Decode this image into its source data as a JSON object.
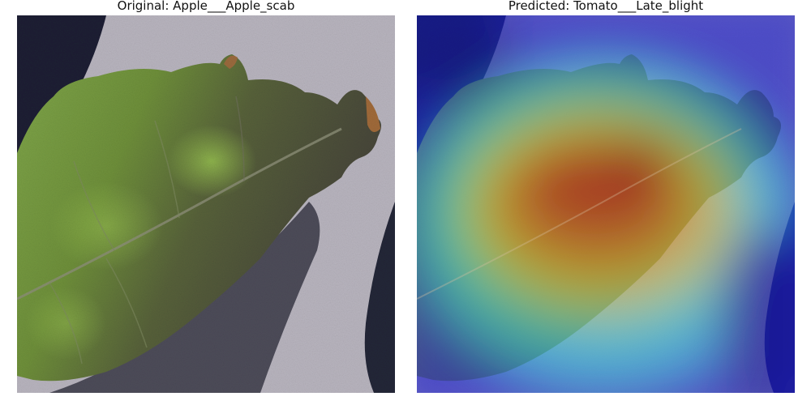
{
  "panels": [
    {
      "title": "Original: Apple___Apple_scab"
    },
    {
      "title": "Predicted: Tomato___Late_blight"
    }
  ],
  "colors": {
    "background_surface": "#b7b3bd",
    "shadow": "#1f2233",
    "leaf_green": "#6f8f3c",
    "leaf_dark": "#454236",
    "heatmap_low": "#1e1ea8",
    "heatmap_mid": "#3fd2e0",
    "heatmap_warm": "#e9e23a",
    "heatmap_hot": "#d8221a"
  }
}
